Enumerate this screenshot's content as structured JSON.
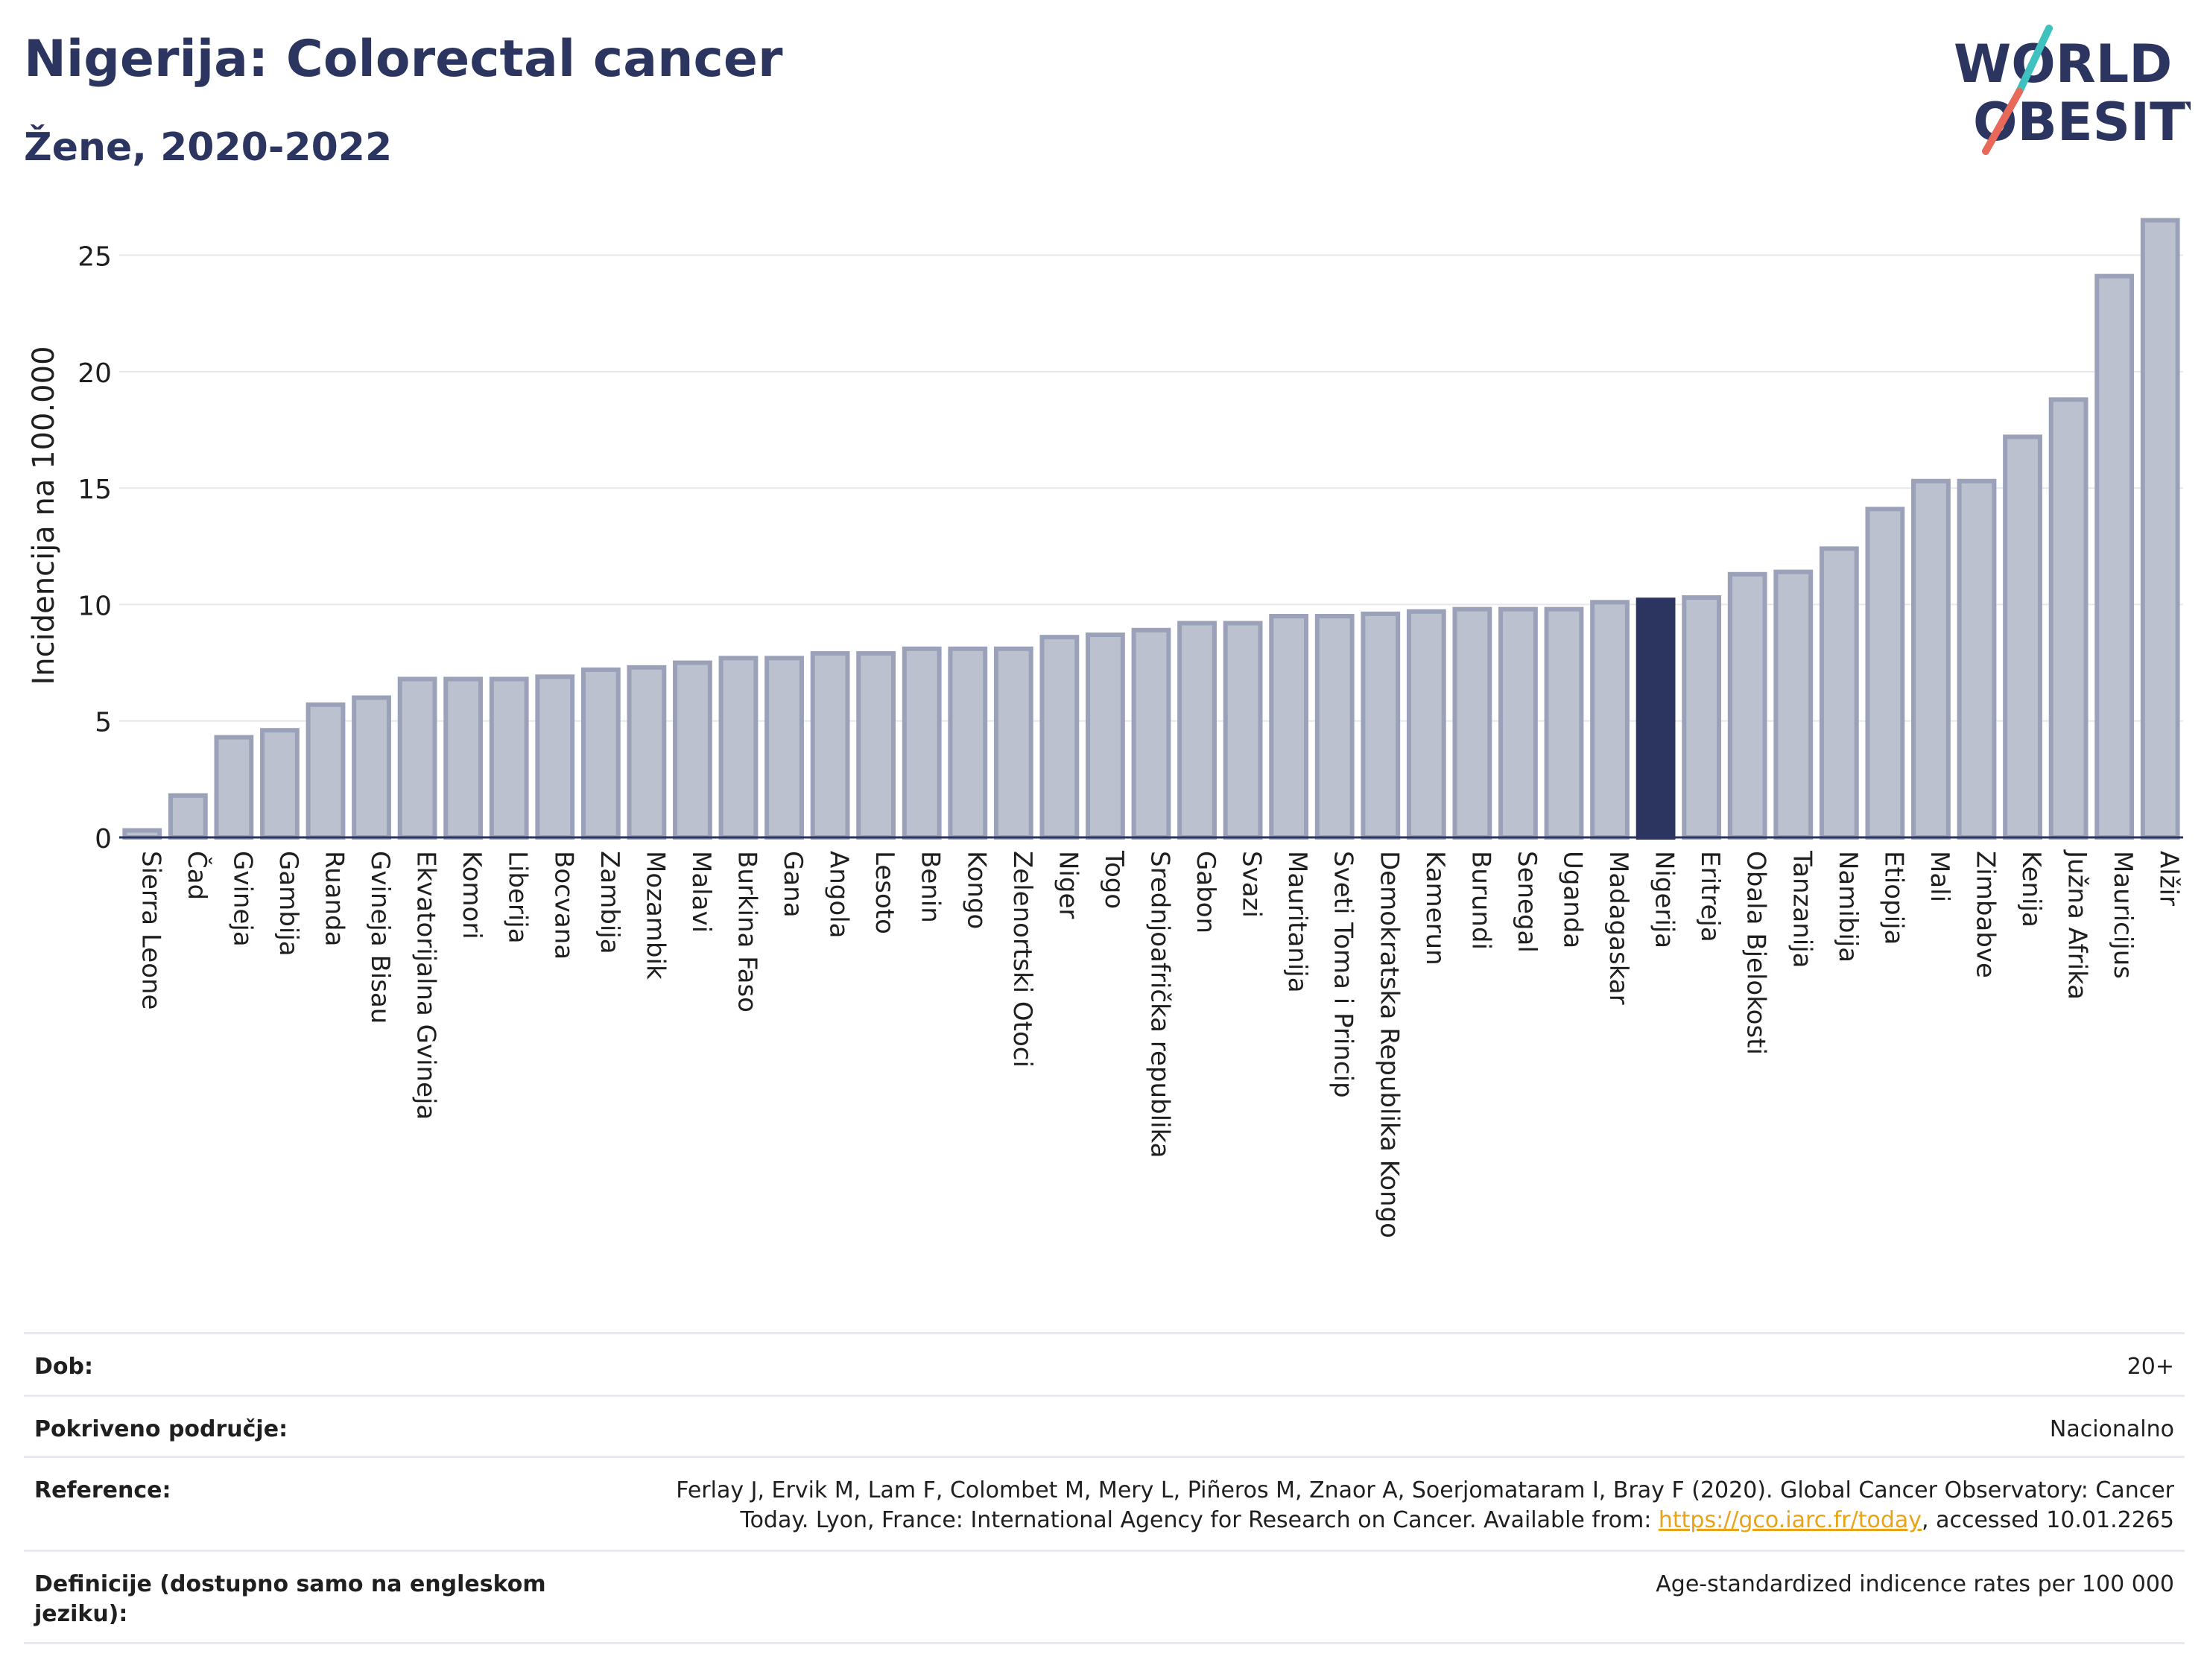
{
  "header": {
    "title": "Nigerija: Colorectal cancer",
    "subtitle": "Žene, 2020-2022"
  },
  "logo": {
    "line1": "WORLD",
    "line2": "OBESITY",
    "accent_teal": "#3fc1c0",
    "accent_red": "#e8695a"
  },
  "chart_data": {
    "type": "bar",
    "ylabel": "Incidencija na 100.000",
    "ylim": [
      0,
      27
    ],
    "yticks": [
      0,
      5,
      10,
      15,
      20,
      25
    ],
    "grid": true,
    "highlight": "Nigerija",
    "colors": {
      "bar": "#bcc1cf",
      "bar_edge": "#9aa1b8",
      "highlight": "#2b3560"
    },
    "categories": [
      "Sierra Leone",
      "Čad",
      "Gvineja",
      "Gambija",
      "Ruanda",
      "Gvineja Bisau",
      "Ekvatorijalna Gvineja",
      "Komori",
      "Liberija",
      "Bocvana",
      "Zambija",
      "Mozambik",
      "Malavi",
      "Burkina Faso",
      "Gana",
      "Angola",
      "Lesoto",
      "Benin",
      "Kongo",
      "Zelenortski Otoci",
      "Niger",
      "Togo",
      "Srednjoafrička republika",
      "Gabon",
      "Svazi",
      "Mauritanija",
      "Sveti Toma i Princip",
      "Demokratska Republika Kongo",
      "Kamerun",
      "Burundi",
      "Senegal",
      "Uganda",
      "Madagaskar",
      "Nigerija",
      "Eritreja",
      "Obala Bjelokosti",
      "Tanzanija",
      "Namibija",
      "Etiopija",
      "Mali",
      "Zimbabve",
      "Kenija",
      "Južna Afrika",
      "Mauricijus",
      "Alžir"
    ],
    "values": [
      0.3,
      1.8,
      4.3,
      4.6,
      5.7,
      6.0,
      6.8,
      6.8,
      6.8,
      6.9,
      7.2,
      7.3,
      7.5,
      7.7,
      7.7,
      7.9,
      7.9,
      8.1,
      8.1,
      8.1,
      8.6,
      8.7,
      8.9,
      9.2,
      9.2,
      9.5,
      9.5,
      9.6,
      9.7,
      9.8,
      9.8,
      9.8,
      10.1,
      10.2,
      10.3,
      11.3,
      11.4,
      12.4,
      14.1,
      15.3,
      15.3,
      17.2,
      18.8,
      24.1,
      26.5
    ]
  },
  "info": {
    "rows": [
      {
        "label": "Dob:",
        "value": "20+"
      },
      {
        "label": "Pokriveno područje:",
        "value": "Nacionalno"
      },
      {
        "label": "Reference:",
        "value_line1": "Ferlay J, Ervik M, Lam F, Colombet M, Mery L, Piñeros M, Znaor A, Soerjomataram I, Bray F (2020). Global Cancer Observatory: Cancer",
        "value_pre": "Today. Lyon, France: International Agency for Research on Cancer. Available from: ",
        "link": "https://gco.iarc.fr/today",
        "value_post": ", accessed 10.01.2265"
      },
      {
        "label_line1": "Definicije (dostupno samo na engleskom",
        "label_line2": "jeziku):",
        "value": "Age-standardized indicence rates per 100 000"
      }
    ]
  }
}
